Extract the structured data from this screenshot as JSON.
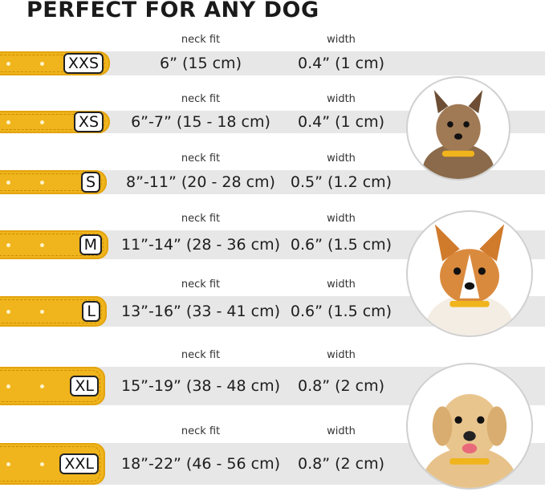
{
  "title": "PERFECT FOR ANY DOG",
  "neck_fit_label": "neck fit",
  "width_label": "width",
  "colors": {
    "collar": "#f0b41c",
    "band": "#e7e7e7"
  },
  "sizes": [
    {
      "size": "XXS",
      "neck_fit": "6” (15 cm)",
      "width": "0.4” (1 cm)"
    },
    {
      "size": "XS",
      "neck_fit": "6”-7” (15 - 18 cm)",
      "width": "0.4” (1 cm)"
    },
    {
      "size": "S",
      "neck_fit": "8”-11” (20 - 28 cm)",
      "width": "0.5” (1.2 cm)"
    },
    {
      "size": "M",
      "neck_fit": "11”-14” (28 - 36 cm)",
      "width": "0.6” (1.5 cm)"
    },
    {
      "size": "L",
      "neck_fit": "13”-16” (33 - 41 cm)",
      "width": "0.6” (1.5 cm)"
    },
    {
      "size": "XL",
      "neck_fit": "15”-19” (38 - 48 cm)",
      "width": "0.8” (2 cm)"
    },
    {
      "size": "XXL",
      "neck_fit": "18”-22” (46 - 56 cm)",
      "width": "0.8” (2 cm)"
    }
  ],
  "dogs": [
    "small-terrier-photo",
    "corgi-photo",
    "labrador-photo"
  ]
}
